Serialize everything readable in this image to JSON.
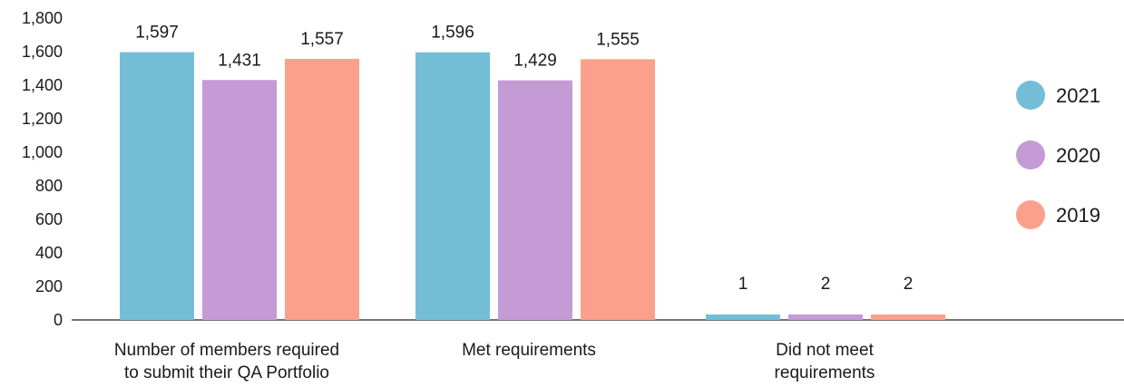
{
  "chart_data": {
    "type": "bar",
    "categories": [
      [
        "Number of members required",
        "to submit their QA Portfolio"
      ],
      [
        "Met requirements"
      ],
      [
        "Did not meet",
        "requirements"
      ]
    ],
    "series": [
      {
        "name": "2021",
        "color": "#74bdd6",
        "values": [
          1597,
          1596,
          1
        ],
        "labels": [
          "1,597",
          "1,596",
          "1"
        ]
      },
      {
        "name": "2020",
        "color": "#c49bd4",
        "values": [
          1431,
          1429,
          2
        ],
        "labels": [
          "1,431",
          "1,429",
          "2"
        ]
      },
      {
        "name": "2019",
        "color": "#fba08b",
        "values": [
          1557,
          1555,
          2
        ],
        "labels": [
          "1,557",
          "1,555",
          "2"
        ]
      }
    ],
    "y_ticks": [
      "0",
      "200",
      "400",
      "600",
      "800",
      "1,000",
      "1,200",
      "1,400",
      "1,600",
      "1,800"
    ],
    "ylim": [
      0,
      1800
    ],
    "grid": false,
    "legend_position": "right"
  }
}
